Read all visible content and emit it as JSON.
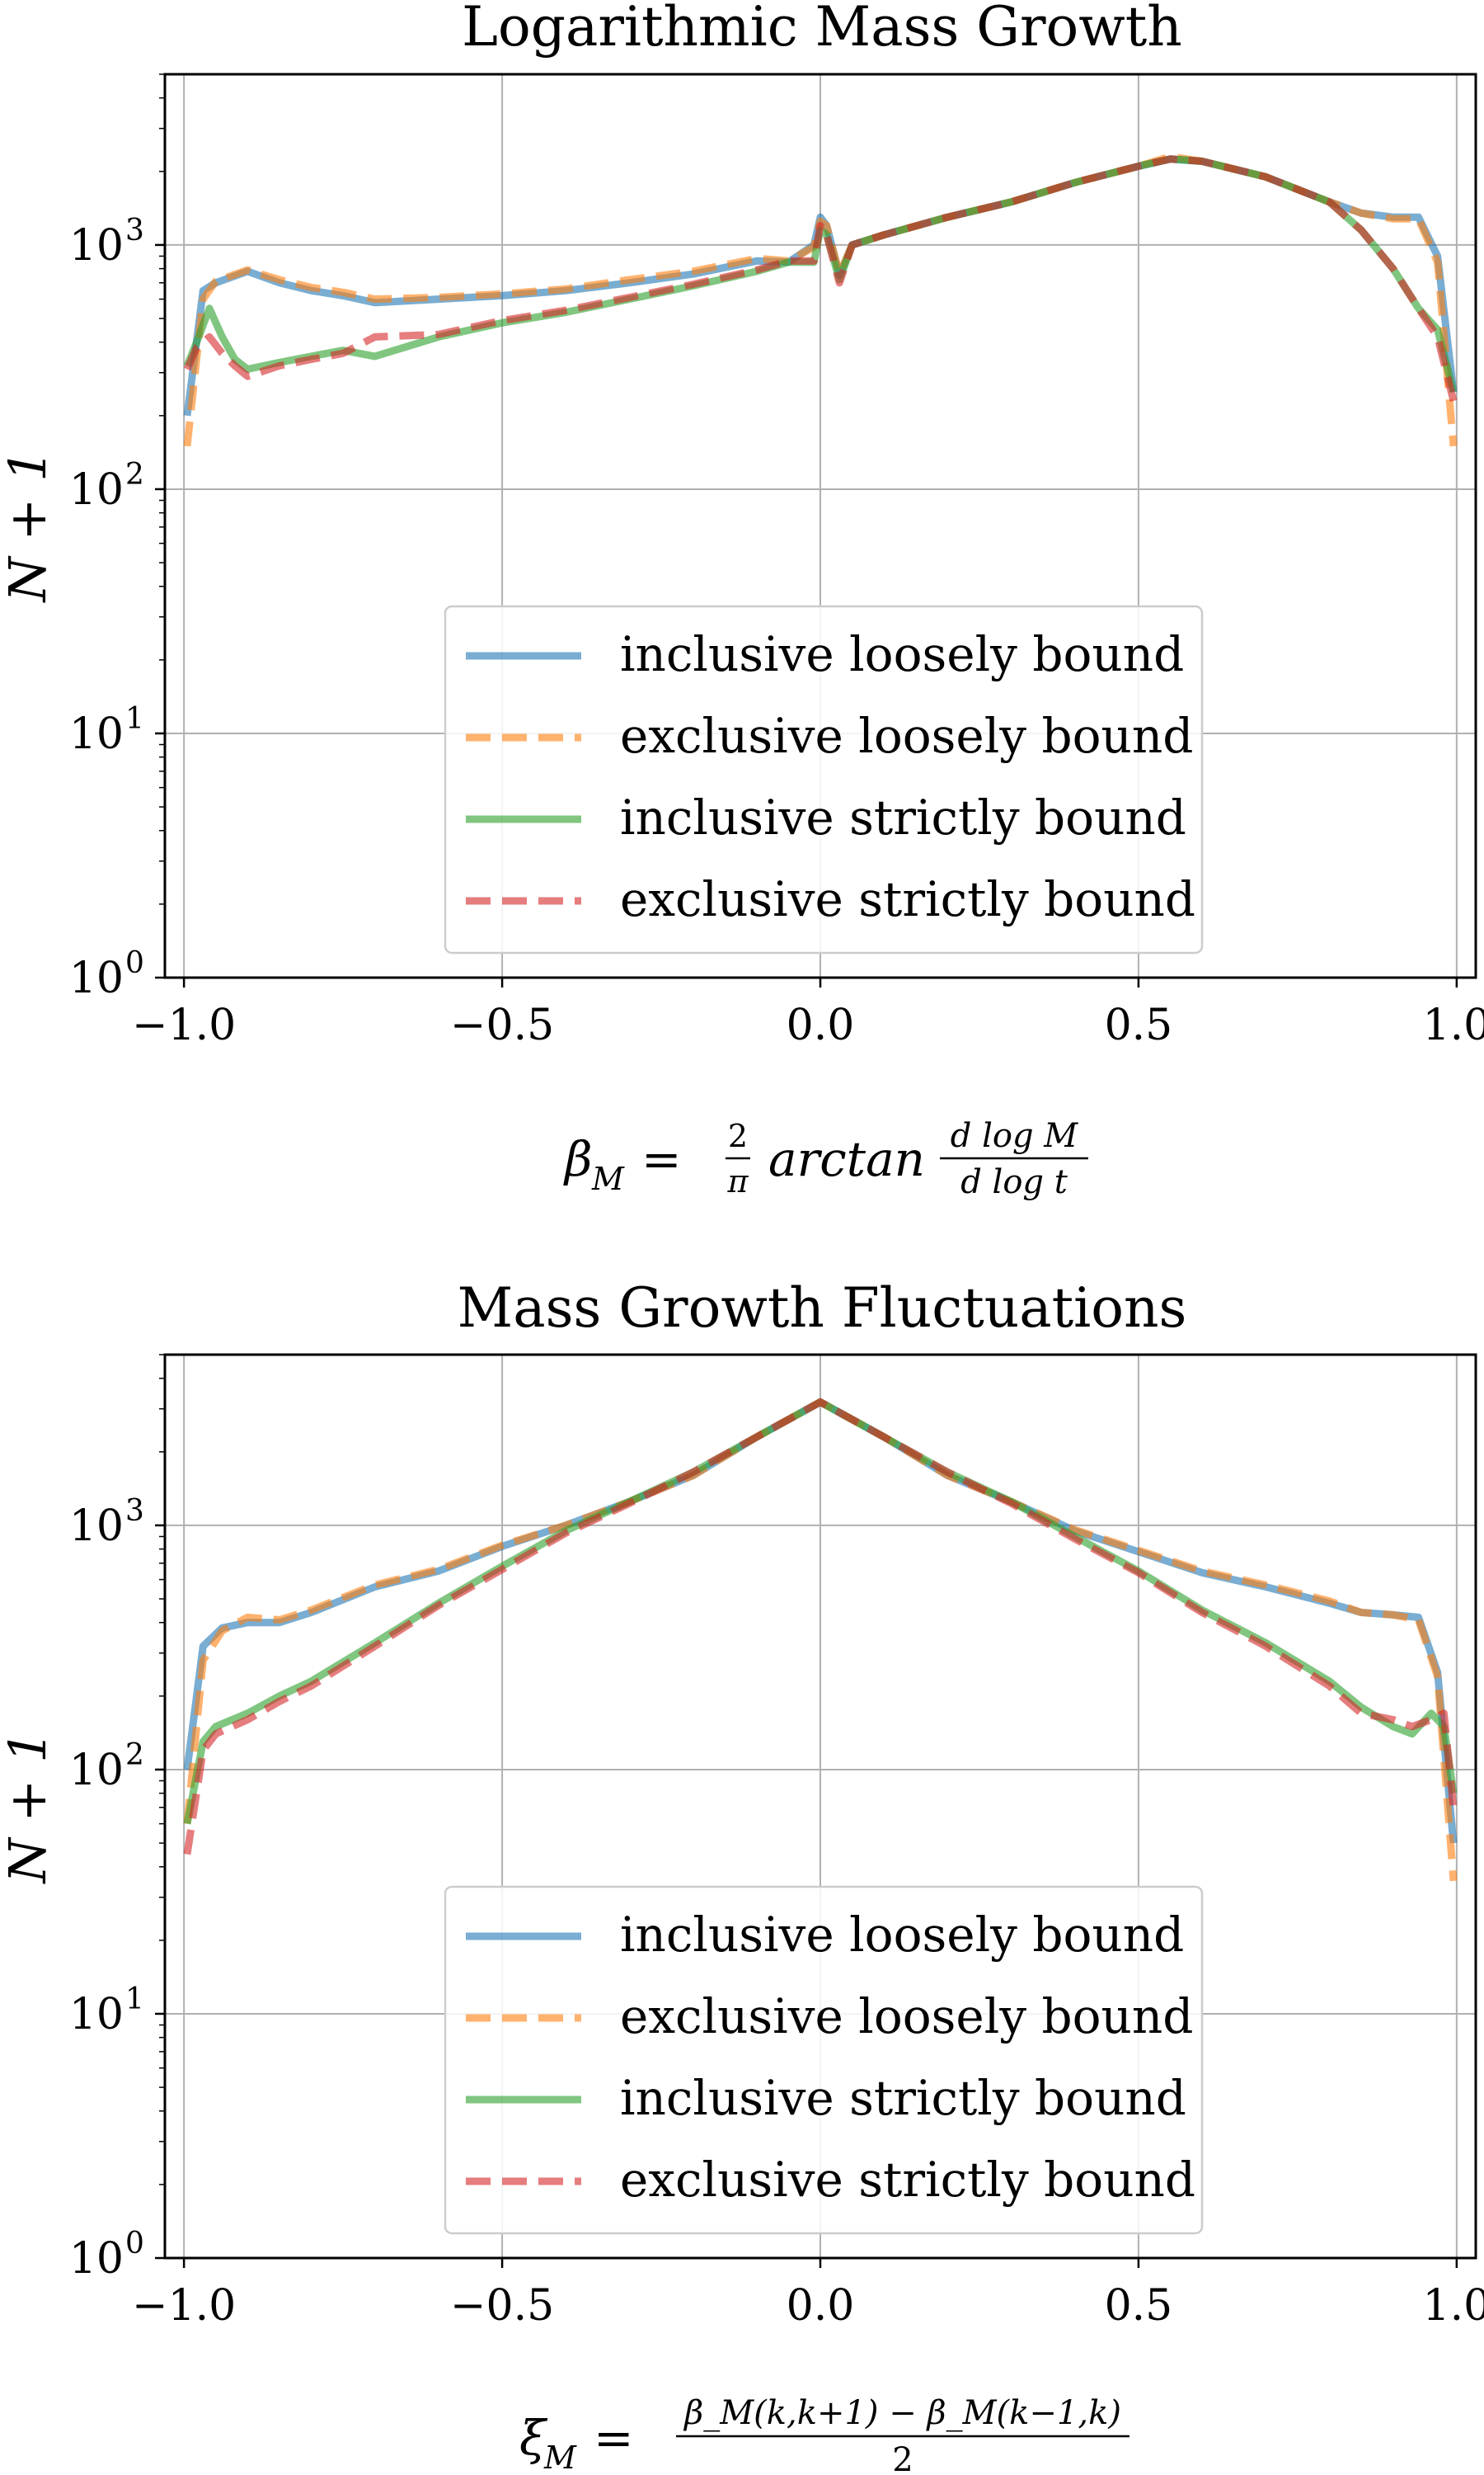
{
  "charts": [
    {
      "title": "Logarithmic Mass Growth",
      "ylabel": "N + 1",
      "xlabel_main": "β",
      "xlabel_sub": "M",
      "xlabel_eq": " = ",
      "xlabel_num_frac": "2",
      "xlabel_den_frac": "π",
      "xlabel_fn": " arctan ",
      "xlabel_num": "d log M",
      "xlabel_den": "d log t",
      "xticks": [
        "−1.0",
        "−0.5",
        "0.0",
        "0.5",
        "1.0"
      ],
      "yticks": [
        "10",
        "10",
        "10",
        "10",
        "10"
      ],
      "yexp": [
        "0",
        "1",
        "2",
        "3",
        ""
      ],
      "legend": [
        "inclusive loosely bound",
        "exclusive loosely bound",
        "inclusive strictly bound",
        "exclusive strictly bound"
      ]
    },
    {
      "title": "Mass Growth Fluctuations",
      "ylabel": "N + 1",
      "xlabel_main": "ξ",
      "xlabel_sub": "M",
      "xlabel_eq": " = ",
      "xlabel_num": "β_M(k,k+1) − β_M(k−1,k)",
      "xlabel_den": "2",
      "xticks": [
        "−1.0",
        "−0.5",
        "0.0",
        "0.5",
        "1.0"
      ],
      "yticks": [
        "10",
        "10",
        "10",
        "10",
        "10"
      ],
      "yexp": [
        "0",
        "1",
        "2",
        "3",
        ""
      ],
      "legend": [
        "inclusive loosely bound",
        "exclusive loosely bound",
        "inclusive strictly bound",
        "exclusive strictly bound"
      ]
    }
  ],
  "chart_data": [
    {
      "type": "line",
      "title": "Logarithmic Mass Growth",
      "xlabel": "β_M = (2/π) arctan (d log M / d log t)",
      "ylabel": "N + 1",
      "yscale": "log",
      "xlim": [
        -1.03,
        1.03
      ],
      "ylim": [
        1,
        5000
      ],
      "grid": true,
      "legend_position": "lower center",
      "series": [
        {
          "name": "inclusive loosely bound",
          "color": "#1f77b4",
          "dash": "solid",
          "x": [
            -0.995,
            -0.97,
            -0.95,
            -0.9,
            -0.85,
            -0.8,
            -0.75,
            -0.7,
            -0.6,
            -0.5,
            -0.4,
            -0.3,
            -0.2,
            -0.1,
            -0.05,
            -0.01,
            0.0,
            0.01,
            0.03,
            0.05,
            0.1,
            0.2,
            0.3,
            0.4,
            0.5,
            0.55,
            0.6,
            0.7,
            0.8,
            0.85,
            0.9,
            0.94,
            0.97,
            0.995
          ],
          "y": [
            200,
            650,
            700,
            780,
            700,
            650,
            620,
            580,
            600,
            620,
            650,
            700,
            760,
            860,
            850,
            1000,
            1300,
            1200,
            750,
            1000,
            1100,
            1300,
            1500,
            1800,
            2100,
            2250,
            2200,
            1900,
            1500,
            1350,
            1300,
            1300,
            900,
            250
          ]
        },
        {
          "name": "exclusive loosely bound",
          "color": "#ff7f0e",
          "dash": "dashed",
          "x": [
            -0.995,
            -0.97,
            -0.95,
            -0.9,
            -0.85,
            -0.8,
            -0.75,
            -0.7,
            -0.6,
            -0.5,
            -0.4,
            -0.3,
            -0.2,
            -0.1,
            -0.05,
            -0.01,
            0.0,
            0.01,
            0.03,
            0.05,
            0.1,
            0.2,
            0.3,
            0.4,
            0.5,
            0.55,
            0.6,
            0.7,
            0.8,
            0.85,
            0.9,
            0.94,
            0.97,
            0.995
          ],
          "y": [
            150,
            600,
            710,
            790,
            720,
            670,
            640,
            600,
            610,
            630,
            660,
            720,
            780,
            880,
            860,
            980,
            1250,
            1200,
            760,
            1000,
            1100,
            1300,
            1500,
            1800,
            2100,
            2300,
            2200,
            1900,
            1500,
            1350,
            1280,
            1280,
            850,
            150
          ]
        },
        {
          "name": "inclusive strictly bound",
          "color": "#2ca02c",
          "dash": "solid",
          "x": [
            -0.995,
            -0.98,
            -0.96,
            -0.94,
            -0.92,
            -0.9,
            -0.85,
            -0.8,
            -0.75,
            -0.7,
            -0.6,
            -0.5,
            -0.4,
            -0.3,
            -0.2,
            -0.1,
            -0.05,
            -0.01,
            0.0,
            0.01,
            0.03,
            0.05,
            0.1,
            0.2,
            0.3,
            0.4,
            0.5,
            0.55,
            0.6,
            0.7,
            0.8,
            0.85,
            0.9,
            0.94,
            0.97,
            0.995
          ],
          "y": [
            320,
            400,
            550,
            420,
            340,
            310,
            330,
            350,
            370,
            350,
            420,
            480,
            530,
            600,
            680,
            780,
            850,
            850,
            1150,
            1100,
            720,
            1000,
            1100,
            1300,
            1500,
            1800,
            2100,
            2250,
            2200,
            1900,
            1500,
            1150,
            800,
            550,
            450,
            250
          ]
        },
        {
          "name": "exclusive strictly bound",
          "color": "#d62728",
          "dash": "dashed",
          "x": [
            -0.995,
            -0.98,
            -0.96,
            -0.94,
            -0.92,
            -0.9,
            -0.85,
            -0.8,
            -0.75,
            -0.7,
            -0.6,
            -0.5,
            -0.4,
            -0.3,
            -0.2,
            -0.1,
            -0.05,
            -0.01,
            0.0,
            0.01,
            0.03,
            0.05,
            0.1,
            0.2,
            0.3,
            0.4,
            0.5,
            0.55,
            0.6,
            0.7,
            0.8,
            0.85,
            0.9,
            0.94,
            0.97,
            0.995
          ],
          "y": [
            310,
            380,
            420,
            360,
            320,
            290,
            320,
            340,
            360,
            420,
            430,
            490,
            540,
            610,
            690,
            790,
            860,
            860,
            1200,
            1100,
            700,
            1000,
            1100,
            1300,
            1500,
            1800,
            2100,
            2250,
            2200,
            1900,
            1500,
            1150,
            800,
            550,
            420,
            230
          ]
        }
      ]
    },
    {
      "type": "line",
      "title": "Mass Growth Fluctuations",
      "xlabel": "ξ_M = (β_M(k,k+1) − β_M(k−1,k)) / 2",
      "ylabel": "N + 1",
      "yscale": "log",
      "xlim": [
        -1.03,
        1.03
      ],
      "ylim": [
        1,
        5000
      ],
      "grid": true,
      "legend_position": "lower center",
      "series": [
        {
          "name": "inclusive loosely bound",
          "color": "#1f77b4",
          "dash": "solid",
          "x": [
            -0.995,
            -0.97,
            -0.94,
            -0.9,
            -0.85,
            -0.8,
            -0.7,
            -0.6,
            -0.5,
            -0.4,
            -0.3,
            -0.2,
            -0.1,
            0.0,
            0.1,
            0.2,
            0.3,
            0.4,
            0.5,
            0.6,
            0.7,
            0.8,
            0.85,
            0.9,
            0.94,
            0.97,
            0.995
          ],
          "y": [
            100,
            320,
            380,
            400,
            400,
            440,
            560,
            650,
            820,
            1000,
            1250,
            1600,
            2300,
            3200,
            2300,
            1600,
            1250,
            950,
            780,
            640,
            560,
            480,
            440,
            430,
            420,
            250,
            50
          ]
        },
        {
          "name": "exclusive loosely bound",
          "color": "#ff7f0e",
          "dash": "dashed",
          "x": [
            -0.995,
            -0.97,
            -0.94,
            -0.9,
            -0.85,
            -0.8,
            -0.7,
            -0.6,
            -0.5,
            -0.4,
            -0.3,
            -0.2,
            -0.1,
            0.0,
            0.1,
            0.2,
            0.3,
            0.4,
            0.5,
            0.6,
            0.7,
            0.8,
            0.85,
            0.9,
            0.94,
            0.97,
            0.995
          ],
          "y": [
            60,
            280,
            370,
            420,
            410,
            450,
            570,
            660,
            830,
            1000,
            1250,
            1600,
            2300,
            3200,
            2300,
            1600,
            1250,
            960,
            790,
            650,
            570,
            490,
            440,
            430,
            410,
            240,
            35
          ]
        },
        {
          "name": "inclusive strictly bound",
          "color": "#2ca02c",
          "dash": "solid",
          "x": [
            -0.995,
            -0.97,
            -0.95,
            -0.9,
            -0.85,
            -0.8,
            -0.7,
            -0.6,
            -0.5,
            -0.4,
            -0.3,
            -0.2,
            -0.1,
            0.0,
            0.1,
            0.2,
            0.3,
            0.4,
            0.5,
            0.6,
            0.7,
            0.8,
            0.85,
            0.9,
            0.93,
            0.96,
            0.98,
            0.995
          ],
          "y": [
            60,
            130,
            150,
            170,
            200,
            230,
            330,
            480,
            680,
            950,
            1250,
            1650,
            2300,
            3200,
            2300,
            1650,
            1250,
            900,
            650,
            450,
            330,
            230,
            180,
            150,
            140,
            170,
            150,
            80
          ]
        },
        {
          "name": "exclusive strictly bound",
          "color": "#d62728",
          "dash": "dashed",
          "x": [
            -0.995,
            -0.97,
            -0.95,
            -0.9,
            -0.85,
            -0.8,
            -0.7,
            -0.6,
            -0.5,
            -0.4,
            -0.3,
            -0.2,
            -0.1,
            0.0,
            0.1,
            0.2,
            0.3,
            0.4,
            0.5,
            0.6,
            0.7,
            0.8,
            0.85,
            0.9,
            0.93,
            0.96,
            0.98,
            0.995
          ],
          "y": [
            45,
            120,
            140,
            160,
            190,
            220,
            320,
            470,
            660,
            930,
            1230,
            1650,
            2300,
            3200,
            2300,
            1650,
            1230,
            880,
            640,
            440,
            320,
            220,
            170,
            160,
            150,
            160,
            170,
            70
          ]
        }
      ]
    }
  ]
}
